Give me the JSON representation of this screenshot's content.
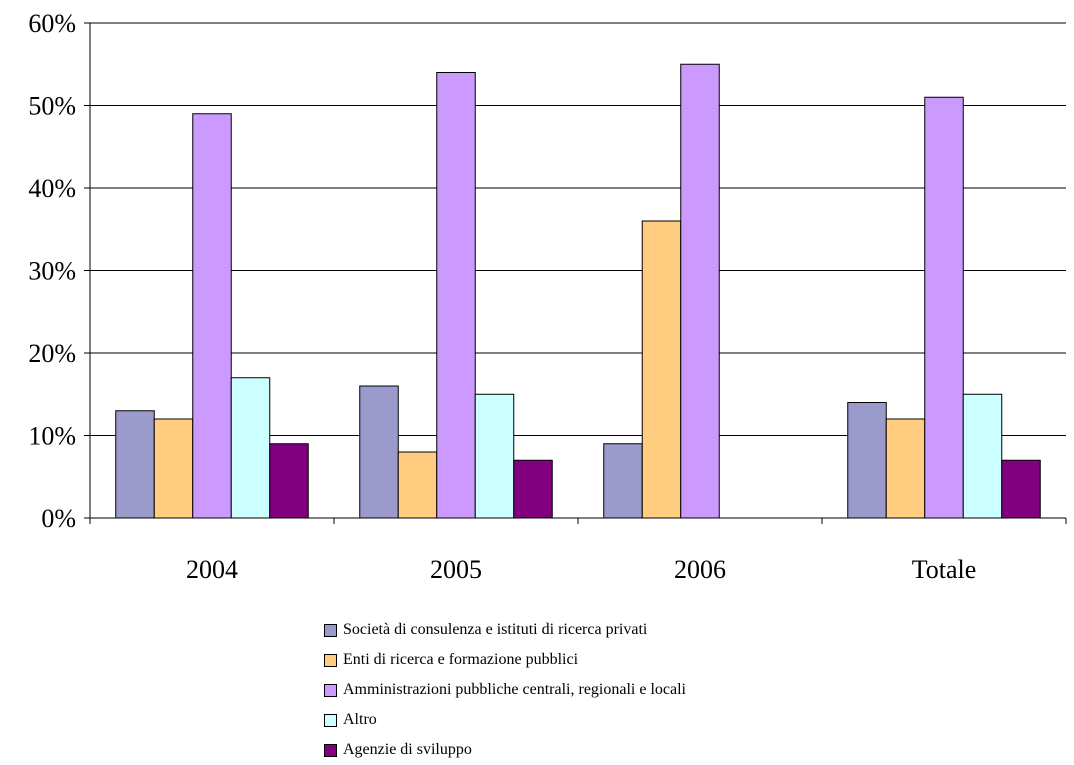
{
  "chart_data": {
    "type": "bar",
    "categories": [
      "2004",
      "2005",
      "2006",
      "Totale"
    ],
    "ylim": [
      0,
      60
    ],
    "yticks": [
      "0%",
      "10%",
      "20%",
      "30%",
      "40%",
      "50%",
      "60%"
    ],
    "grid": true,
    "legend_position": "bottom",
    "series": [
      {
        "name": "Società di consulenza e istituti di ricerca privati",
        "color": "#9A9ACB",
        "values": [
          13,
          16,
          9,
          14
        ]
      },
      {
        "name": "Enti di ricerca e formazione pubblici",
        "color": "#FFCC80",
        "values": [
          12,
          8,
          36,
          12
        ]
      },
      {
        "name": "Amministrazioni pubbliche centrali, regionali e locali",
        "color": "#CC99FF",
        "values": [
          49,
          54,
          55,
          51
        ]
      },
      {
        "name": "Altro",
        "color": "#CCFFFF",
        "values": [
          17,
          15,
          0,
          15
        ]
      },
      {
        "name": "Agenzie di sviluppo",
        "color": "#800080",
        "values": [
          9,
          7,
          0,
          7
        ]
      }
    ]
  }
}
